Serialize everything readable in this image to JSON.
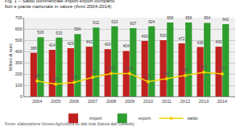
{
  "chart_data": {
    "type": "bar",
    "title": "Fig. 1 – Saldo commerciale import-export comparto fiori e piante nazionale in valore (Anni 2004-2014)",
    "y_label": "Milioni di euro",
    "source": "Fonte: elaborazione Veneto Agricoltura su dati Istat (banca dati Coeweb)",
    "categories": [
      "2004",
      "2005",
      "2006",
      "2007",
      "2008",
      "2009",
      "2010",
      "2011",
      "2012",
      "2013",
      "2014"
    ],
    "series": [
      {
        "name": "import",
        "type": "bar",
        "color": "#c0211f",
        "values": [
          388,
          414,
          429,
          442,
          420,
          404,
          493,
          500,
          472,
          439,
          442
        ]
      },
      {
        "name": "export",
        "type": "bar",
        "color": "#2e9e2e",
        "values": [
          526,
          523,
          554,
          612,
          623,
          607,
          624,
          658,
          658,
          654,
          642
        ]
      },
      {
        "name": "saldo",
        "type": "line",
        "color": "#f2d200",
        "marker": "circle",
        "values": [
          138,
          109,
          125,
          170,
          203,
          203,
          131,
          158,
          186,
          215,
          200
        ]
      }
    ],
    "ylim": [
      0,
      700
    ],
    "yticks": [
      0,
      100,
      200,
      300,
      400,
      500,
      600,
      700
    ],
    "grid": true,
    "data_labels": true,
    "legend": "bottom"
  }
}
